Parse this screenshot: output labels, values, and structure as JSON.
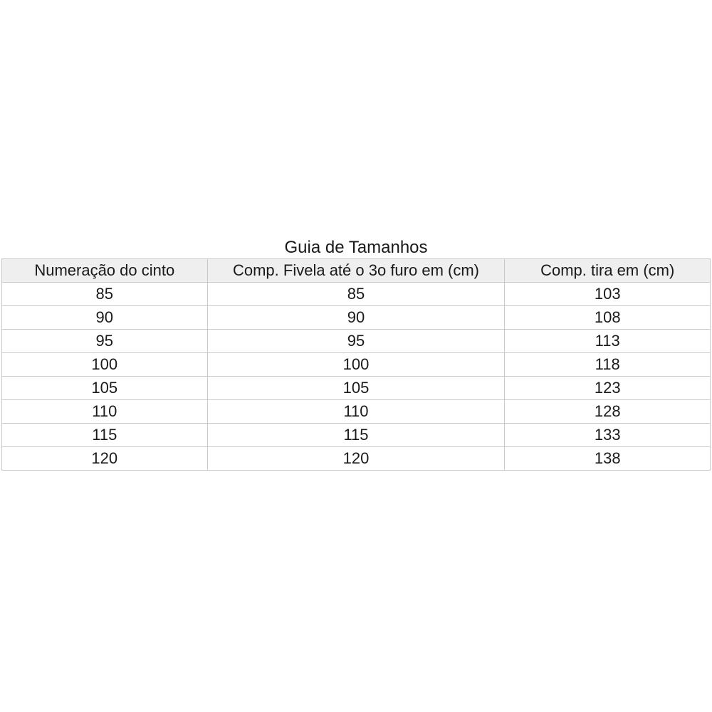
{
  "title": "Guia de Tamanhos",
  "table": {
    "headers": [
      "Numeração do cinto",
      "Comp. Fivela até o 3o furo em (cm)",
      "Comp. tira em (cm)"
    ],
    "rows": [
      [
        "85",
        "85",
        "103"
      ],
      [
        "90",
        "90",
        "108"
      ],
      [
        "95",
        "95",
        "113"
      ],
      [
        "100",
        "100",
        "118"
      ],
      [
        "105",
        "105",
        "123"
      ],
      [
        "110",
        "110",
        "128"
      ],
      [
        "115",
        "115",
        "133"
      ],
      [
        "120",
        "120",
        "138"
      ]
    ]
  },
  "colors": {
    "header_bg": "#efefef",
    "border": "#c9c9c9",
    "text": "#1a1a1a",
    "background": "#ffffff"
  }
}
